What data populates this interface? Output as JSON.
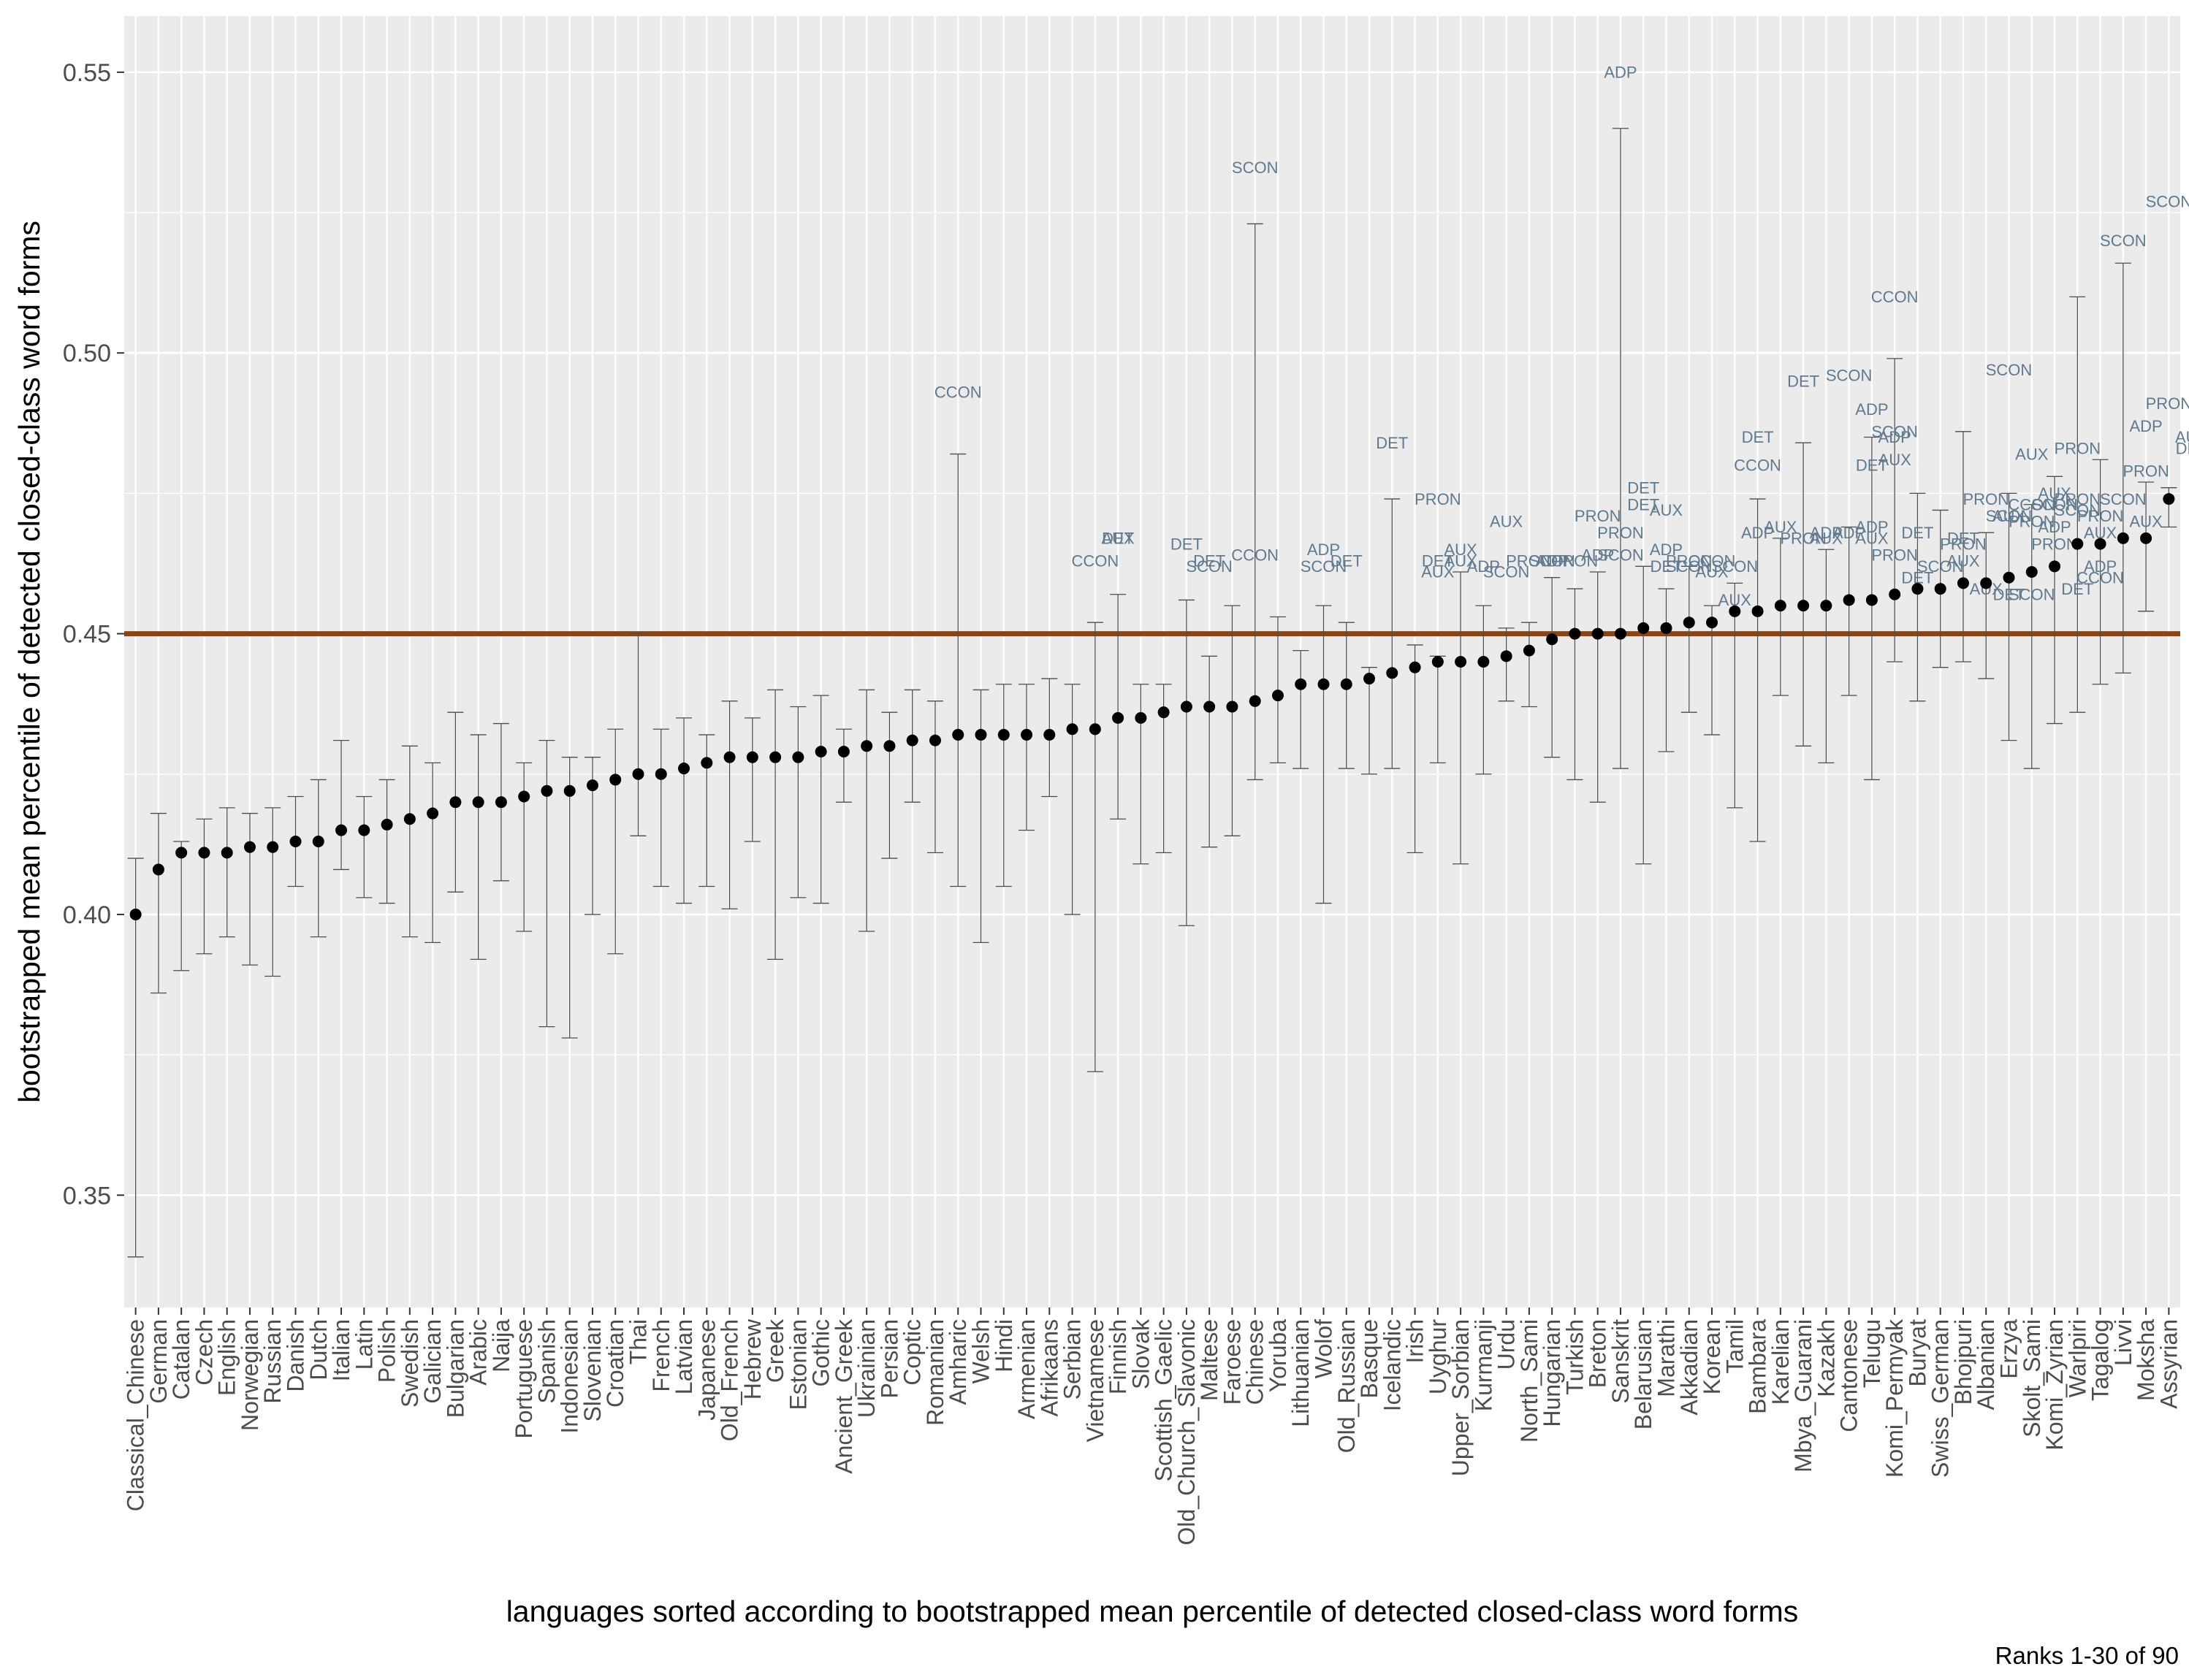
{
  "chart_data": {
    "type": "scatter",
    "xlabel": "languages sorted according to bootstrapped mean percentile of detected closed-class word forms",
    "ylabel": "bootstrapped mean percentile of detected closed-class word forms",
    "caption": "Ranks 1-30 of 90",
    "ylim": [
      0.33,
      0.56
    ],
    "yticks": [
      0.35,
      0.4,
      0.45,
      0.5,
      0.55
    ],
    "ytick_labels": [
      "0.35",
      "0.40",
      "0.45",
      "0.50",
      "0.55"
    ],
    "grid": true,
    "reference_line": {
      "y": 0.45,
      "color": "#8b4513"
    },
    "colors": {
      "panel": "#ebebeb",
      "grid": "#ffffff",
      "point": "#000000",
      "errorbar": "#4d4d4d",
      "annotation": "#5f7a8f"
    },
    "categories": [
      "Classical_Chinese",
      "German",
      "Catalan",
      "Czech",
      "English",
      "Norwegian",
      "Russian",
      "Danish",
      "Dutch",
      "Italian",
      "Latin",
      "Polish",
      "Swedish",
      "Galician",
      "Bulgarian",
      "Arabic",
      "Naija",
      "Portuguese",
      "Spanish",
      "Indonesian",
      "Slovenian",
      "Croatian",
      "Thai",
      "French",
      "Latvian",
      "Japanese",
      "Old_French",
      "Hebrew",
      "Greek",
      "Estonian",
      "Gothic",
      "Ancient_Greek",
      "Ukrainian",
      "Persian",
      "Coptic",
      "Romanian",
      "Amharic",
      "Welsh",
      "Hindi",
      "Armenian",
      "Afrikaans",
      "Serbian",
      "Vietnamese",
      "Finnish",
      "Slovak",
      "Scottish_Gaelic",
      "Old_Church_Slavonic",
      "Maltese",
      "Faroese",
      "Chinese",
      "Yoruba",
      "Lithuanian",
      "Wolof",
      "Old_Russian",
      "Basque",
      "Icelandic",
      "Irish",
      "Uyghur",
      "Upper_Sorbian",
      "Kurmanji",
      "Urdu",
      "North_Sami",
      "Hungarian",
      "Turkish",
      "Breton",
      "Sanskrit",
      "Belarusian",
      "Marathi",
      "Akkadian",
      "Korean",
      "Tamil",
      "Bambara",
      "Karelian",
      "Mbya_Guarani",
      "Kazakh",
      "Cantonese",
      "Telugu",
      "Komi_Permyak",
      "Buryat",
      "Swiss_German",
      "Bhojpuri",
      "Albanian",
      "Erzya",
      "Skolt_Sami",
      "Komi_Zyrian",
      "Warlpiri",
      "Tagalog",
      "Livvi",
      "Moksha",
      "Assyrian"
    ],
    "series": [
      {
        "values": [
          0.4,
          0.408,
          0.411,
          0.411,
          0.411,
          0.412,
          0.412,
          0.413,
          0.413,
          0.415,
          0.415,
          0.416,
          0.417,
          0.418,
          0.42,
          0.42,
          0.42,
          0.421,
          0.422,
          0.422,
          0.423,
          0.424,
          0.425,
          0.425,
          0.426,
          0.427,
          0.428,
          0.428,
          0.428,
          0.428,
          0.429,
          0.429,
          0.43,
          0.43,
          0.431,
          0.431,
          0.432,
          0.432,
          0.432,
          0.432,
          0.432,
          0.433,
          0.433,
          0.435,
          0.435,
          0.436,
          0.437,
          0.437,
          0.437,
          0.438,
          0.439,
          0.441,
          0.441,
          0.441,
          0.442,
          0.443,
          0.444,
          0.445,
          0.445,
          0.445,
          0.446,
          0.447,
          0.449,
          0.45,
          0.45,
          0.45,
          0.451,
          0.451,
          0.452,
          0.452,
          0.454,
          0.454,
          0.455,
          0.455,
          0.455,
          0.456,
          0.456,
          0.457,
          0.458,
          0.458,
          0.459,
          0.459,
          0.46,
          0.461,
          0.462,
          0.466,
          0.466,
          0.467,
          0.467,
          0.474
        ],
        "lower": [
          0.339,
          0.386,
          0.39,
          0.393,
          0.396,
          0.391,
          0.389,
          0.405,
          0.396,
          0.408,
          0.403,
          0.402,
          0.396,
          0.395,
          0.404,
          0.392,
          0.406,
          0.397,
          0.38,
          0.378,
          0.4,
          0.393,
          0.414,
          0.405,
          0.402,
          0.405,
          0.401,
          0.413,
          0.392,
          0.403,
          0.402,
          0.42,
          0.397,
          0.41,
          0.42,
          0.411,
          0.405,
          0.395,
          0.405,
          0.415,
          0.421,
          0.4,
          0.372,
          0.417,
          0.409,
          0.411,
          0.398,
          0.412,
          0.414,
          0.424,
          0.427,
          0.426,
          0.402,
          0.426,
          0.425,
          0.426,
          0.411,
          0.427,
          0.409,
          0.425,
          0.438,
          0.437,
          0.428,
          0.424,
          0.42,
          0.426,
          0.409,
          0.429,
          0.436,
          0.432,
          0.419,
          0.413,
          0.439,
          0.43,
          0.427,
          0.439,
          0.424,
          0.445,
          0.438,
          0.444,
          0.445,
          0.442,
          0.431,
          0.426,
          0.434,
          0.436,
          0.441,
          0.443,
          0.454,
          0.469
        ],
        "upper": [
          0.41,
          0.418,
          0.413,
          0.417,
          0.419,
          0.418,
          0.419,
          0.421,
          0.424,
          0.431,
          0.421,
          0.424,
          0.43,
          0.427,
          0.436,
          0.432,
          0.434,
          0.427,
          0.431,
          0.428,
          0.428,
          0.433,
          0.45,
          0.433,
          0.435,
          0.432,
          0.438,
          0.435,
          0.44,
          0.437,
          0.439,
          0.433,
          0.44,
          0.436,
          0.44,
          0.438,
          0.482,
          0.44,
          0.441,
          0.441,
          0.442,
          0.441,
          0.452,
          0.457,
          0.441,
          0.441,
          0.456,
          0.446,
          0.455,
          0.523,
          0.453,
          0.447,
          0.455,
          0.452,
          0.444,
          0.474,
          0.448,
          0.446,
          0.461,
          0.455,
          0.451,
          0.452,
          0.46,
          0.458,
          0.461,
          0.54,
          0.462,
          0.458,
          0.462,
          0.455,
          0.459,
          0.474,
          0.467,
          0.484,
          0.465,
          0.469,
          0.485,
          0.499,
          0.475,
          0.472,
          0.486,
          0.468,
          0.475,
          0.473,
          0.478,
          0.51,
          0.481,
          0.516,
          0.477,
          0.476
        ]
      }
    ],
    "annotations": [
      [
        "ADP",
        65,
        0.549
      ],
      [
        "SCON",
        49,
        0.532
      ],
      [
        "CCON",
        36,
        0.492
      ],
      [
        "DET",
        55,
        0.483
      ],
      [
        "PRON",
        57,
        0.473
      ],
      [
        "SCON",
        89,
        0.526
      ],
      [
        "SCON",
        87,
        0.519
      ],
      [
        "CCON",
        77,
        0.509
      ],
      [
        "SCON",
        82,
        0.496
      ],
      [
        "DET",
        73,
        0.494
      ],
      [
        "SCON",
        75,
        0.495
      ],
      [
        "ADP",
        76,
        0.489
      ],
      [
        "SCON",
        77,
        0.485
      ],
      [
        "ADP",
        77,
        0.484
      ],
      [
        "PRON",
        89,
        0.49
      ],
      [
        "PRON",
        91,
        0.488
      ],
      [
        "ADP",
        88,
        0.486
      ],
      [
        "DET",
        71,
        0.484
      ],
      [
        "DET",
        76,
        0.479
      ],
      [
        "CCON",
        71,
        0.479
      ],
      [
        "AUX",
        77,
        0.48
      ],
      [
        "AUX",
        83,
        0.481
      ],
      [
        "PRON",
        85,
        0.482
      ],
      [
        "PRON",
        88,
        0.478
      ],
      [
        "AUX",
        90,
        0.484
      ],
      [
        "DET",
        90,
        0.482
      ],
      [
        "DET",
        66,
        0.475
      ],
      [
        "PRON",
        64,
        0.47
      ],
      [
        "DET",
        66,
        0.472
      ],
      [
        "AUX",
        67,
        0.471
      ],
      [
        "AUX",
        60,
        0.469
      ],
      [
        "PRON",
        65,
        0.467
      ],
      [
        "AUX",
        43,
        0.466
      ],
      [
        "DET",
        43,
        0.466
      ],
      [
        "DET",
        46,
        0.465
      ],
      [
        "DET",
        47,
        0.462
      ],
      [
        "SCON",
        47,
        0.461
      ],
      [
        "CCON",
        42,
        0.462
      ],
      [
        "CCON",
        49,
        0.463
      ],
      [
        "ADP",
        52,
        0.464
      ],
      [
        "SCON",
        52,
        0.461
      ],
      [
        "DET",
        53,
        0.462
      ],
      [
        "AUX",
        57,
        0.46
      ],
      [
        "AUX",
        58,
        0.464
      ],
      [
        "DET",
        57,
        0.462
      ],
      [
        "AUX",
        58,
        0.462
      ],
      [
        "ADP",
        59,
        0.461
      ],
      [
        "SCON",
        60,
        0.46
      ],
      [
        "PRON",
        61,
        0.462
      ],
      [
        "ADP",
        62,
        0.462
      ],
      [
        "SCON",
        62,
        0.462
      ],
      [
        "PRON",
        63,
        0.462
      ],
      [
        "ADP",
        64,
        0.463
      ],
      [
        "SCON",
        65,
        0.463
      ],
      [
        "ADP",
        67,
        0.464
      ],
      [
        "PRON",
        68,
        0.462
      ],
      [
        "CCON",
        69,
        0.462
      ],
      [
        "DET",
        67,
        0.461
      ],
      [
        "SCON",
        68,
        0.461
      ],
      [
        "AUX",
        69,
        0.46
      ],
      [
        "SCON",
        70,
        0.461
      ],
      [
        "AUX",
        70,
        0.455
      ],
      [
        "ADP",
        71,
        0.467
      ],
      [
        "AUX",
        72,
        0.468
      ],
      [
        "PRON",
        73,
        0.466
      ],
      [
        "ADP",
        74,
        0.467
      ],
      [
        "AUX",
        74,
        0.466
      ],
      [
        "ADP",
        75,
        0.467
      ],
      [
        "AUX",
        76,
        0.466
      ],
      [
        "ADP",
        76,
        0.468
      ],
      [
        "DET",
        78,
        0.467
      ],
      [
        "PRON",
        77,
        0.463
      ],
      [
        "AUX",
        80,
        0.462
      ],
      [
        "SCON",
        79,
        0.461
      ],
      [
        "DET",
        78,
        0.459
      ],
      [
        "AUX",
        81,
        0.457
      ],
      [
        "DET",
        82,
        0.456
      ],
      [
        "SCON",
        83,
        0.456
      ],
      [
        "DET",
        85,
        0.457
      ],
      [
        "CCON",
        86,
        0.459
      ],
      [
        "ADP",
        86,
        0.461
      ],
      [
        "PRON",
        80,
        0.465
      ],
      [
        "PRON",
        81,
        0.473
      ],
      [
        "SCON",
        82,
        0.47
      ],
      [
        "AUX",
        84,
        0.474
      ],
      [
        "PRON",
        85,
        0.473
      ],
      [
        "CCON",
        83,
        0.472
      ],
      [
        "SCON",
        84,
        0.472
      ],
      [
        "PRON",
        86,
        0.47
      ],
      [
        "AUX",
        86,
        0.467
      ],
      [
        "SCON",
        85,
        0.471
      ],
      [
        "AUX",
        82,
        0.47
      ],
      [
        "PRON",
        83,
        0.469
      ],
      [
        "ADP",
        84,
        0.468
      ],
      [
        "DET",
        80,
        0.466
      ],
      [
        "SCON",
        87,
        0.473
      ],
      [
        "AUX",
        88,
        0.469
      ],
      [
        "PRON",
        84,
        0.465
      ]
    ]
  }
}
